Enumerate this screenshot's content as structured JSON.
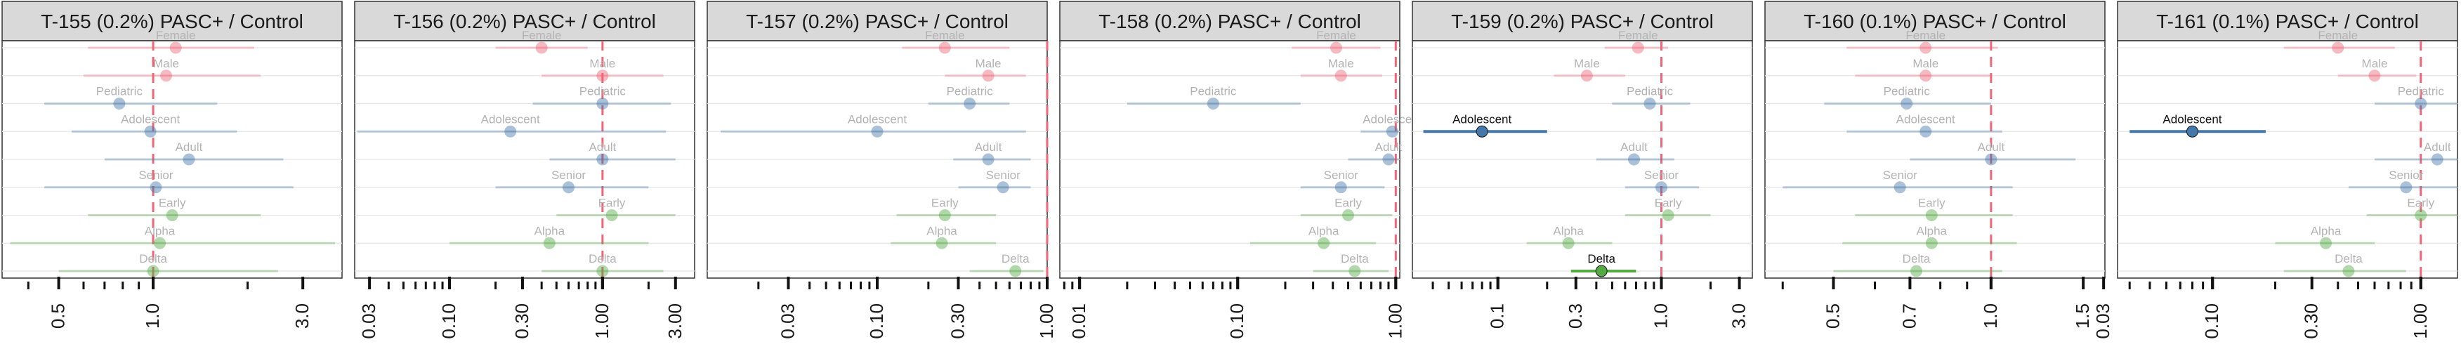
{
  "figure": {
    "reference_line_color": "#ee6677",
    "row_colors": {
      "Female": "#ee6677",
      "Male": "#ee6677",
      "Pediatric": "#4477aa",
      "Adolescent": "#4477aa",
      "Adult": "#4477aa",
      "Senior": "#4477aa",
      "Early": "#55aa44",
      "Alpha": "#55aa44",
      "Delta": "#55aa44"
    }
  },
  "chart_data": [
    {
      "type": "forest",
      "title": "T-155 (0.2%) PASC+ / Control",
      "xscale": "log",
      "xlim": [
        0.33,
        4.0
      ],
      "ticks": [
        "0.5",
        "1.0",
        "3.0"
      ],
      "rows": [
        {
          "label": "Female",
          "estimate": 1.18,
          "low": 0.62,
          "high": 2.1,
          "significant": false
        },
        {
          "label": "Male",
          "estimate": 1.1,
          "low": 0.6,
          "high": 2.2,
          "significant": false
        },
        {
          "label": "Pediatric",
          "estimate": 0.78,
          "low": 0.45,
          "high": 1.6,
          "significant": false
        },
        {
          "label": "Adolescent",
          "estimate": 0.98,
          "low": 0.55,
          "high": 1.85,
          "significant": false
        },
        {
          "label": "Adult",
          "estimate": 1.3,
          "low": 0.7,
          "high": 2.6,
          "significant": false
        },
        {
          "label": "Senior",
          "estimate": 1.02,
          "low": 0.45,
          "high": 2.8,
          "significant": false
        },
        {
          "label": "Early",
          "estimate": 1.15,
          "low": 0.62,
          "high": 2.2,
          "significant": false
        },
        {
          "label": "Alpha",
          "estimate": 1.05,
          "low": 0.35,
          "high": 3.8,
          "significant": false
        },
        {
          "label": "Delta",
          "estimate": 1.0,
          "low": 0.5,
          "high": 2.5,
          "significant": false
        }
      ]
    },
    {
      "type": "forest",
      "title": "T-156 (0.2%) PASC+ / Control",
      "xscale": "log",
      "xlim": [
        0.024,
        4.0
      ],
      "ticks": [
        "0.03",
        "0.10",
        "0.30",
        "1.00",
        "3.00"
      ],
      "rows": [
        {
          "label": "Female",
          "estimate": 0.4,
          "low": 0.2,
          "high": 0.8,
          "significant": false
        },
        {
          "label": "Male",
          "estimate": 1.0,
          "low": 0.4,
          "high": 2.5,
          "significant": false
        },
        {
          "label": "Pediatric",
          "estimate": 1.0,
          "low": 0.35,
          "high": 2.8,
          "significant": false
        },
        {
          "label": "Adolescent",
          "estimate": 0.25,
          "low": 0.025,
          "high": 2.6,
          "significant": false
        },
        {
          "label": "Adult",
          "estimate": 1.0,
          "low": 0.45,
          "high": 3.0,
          "significant": false
        },
        {
          "label": "Senior",
          "estimate": 0.6,
          "low": 0.2,
          "high": 2.0,
          "significant": false
        },
        {
          "label": "Early",
          "estimate": 1.15,
          "low": 0.5,
          "high": 3.0,
          "significant": false
        },
        {
          "label": "Alpha",
          "estimate": 0.45,
          "low": 0.1,
          "high": 2.0,
          "significant": false
        },
        {
          "label": "Delta",
          "estimate": 1.0,
          "low": 0.4,
          "high": 2.5,
          "significant": false
        }
      ]
    },
    {
      "type": "forest",
      "title": "T-157 (0.2%) PASC+ / Control",
      "xscale": "log",
      "xlim": [
        0.01,
        1.0
      ],
      "ticks": [
        "0.03",
        "0.10",
        "0.30",
        "1.00"
      ],
      "rows": [
        {
          "label": "Female",
          "estimate": 0.25,
          "low": 0.14,
          "high": 0.6,
          "significant": false
        },
        {
          "label": "Male",
          "estimate": 0.45,
          "low": 0.25,
          "high": 0.75,
          "significant": false
        },
        {
          "label": "Pediatric",
          "estimate": 0.35,
          "low": 0.2,
          "high": 0.6,
          "significant": false
        },
        {
          "label": "Adolescent",
          "estimate": 0.1,
          "low": 0.012,
          "high": 0.75,
          "significant": false
        },
        {
          "label": "Adult",
          "estimate": 0.45,
          "low": 0.28,
          "high": 0.8,
          "significant": false
        },
        {
          "label": "Senior",
          "estimate": 0.55,
          "low": 0.3,
          "high": 0.8,
          "significant": false
        },
        {
          "label": "Early",
          "estimate": 0.25,
          "low": 0.13,
          "high": 0.5,
          "significant": false
        },
        {
          "label": "Alpha",
          "estimate": 0.24,
          "low": 0.12,
          "high": 0.5,
          "significant": false
        },
        {
          "label": "Delta",
          "estimate": 0.65,
          "low": 0.35,
          "high": 0.95,
          "significant": false
        }
      ]
    },
    {
      "type": "forest",
      "title": "T-158 (0.2%) PASC+ / Control",
      "xscale": "log",
      "xlim": [
        0.0075,
        1.06
      ],
      "ticks": [
        "0.01",
        "0.10",
        "1.00"
      ],
      "rows": [
        {
          "label": "Female",
          "estimate": 0.42,
          "low": 0.22,
          "high": 0.8,
          "significant": false
        },
        {
          "label": "Male",
          "estimate": 0.45,
          "low": 0.25,
          "high": 0.82,
          "significant": false
        },
        {
          "label": "Pediatric",
          "estimate": 0.07,
          "low": 0.02,
          "high": 0.25,
          "significant": false
        },
        {
          "label": "Adolescent",
          "estimate": 0.95,
          "low": 0.6,
          "high": 1.05,
          "significant": false
        },
        {
          "label": "Adult",
          "estimate": 0.9,
          "low": 0.5,
          "high": 1.05,
          "significant": false
        },
        {
          "label": "Senior",
          "estimate": 0.45,
          "low": 0.25,
          "high": 0.85,
          "significant": false
        },
        {
          "label": "Early",
          "estimate": 0.5,
          "low": 0.25,
          "high": 0.95,
          "significant": false
        },
        {
          "label": "Alpha",
          "estimate": 0.35,
          "low": 0.12,
          "high": 0.75,
          "significant": false
        },
        {
          "label": "Delta",
          "estimate": 0.55,
          "low": 0.3,
          "high": 0.9,
          "significant": false
        }
      ]
    },
    {
      "type": "forest",
      "title": "T-159 (0.2%) PASC+ / Control",
      "xscale": "log",
      "xlim": [
        0.03,
        3.6
      ],
      "ticks": [
        "0.1",
        "0.3",
        "1.0",
        "3.0"
      ],
      "rows": [
        {
          "label": "Female",
          "estimate": 0.72,
          "low": 0.45,
          "high": 1.1,
          "significant": false
        },
        {
          "label": "Male",
          "estimate": 0.35,
          "low": 0.22,
          "high": 0.6,
          "significant": false
        },
        {
          "label": "Pediatric",
          "estimate": 0.85,
          "low": 0.5,
          "high": 1.5,
          "significant": false
        },
        {
          "label": "Adolescent",
          "estimate": 0.08,
          "low": 0.035,
          "high": 0.2,
          "significant": true
        },
        {
          "label": "Adult",
          "estimate": 0.68,
          "low": 0.4,
          "high": 1.2,
          "significant": false
        },
        {
          "label": "Senior",
          "estimate": 1.0,
          "low": 0.6,
          "high": 1.7,
          "significant": false
        },
        {
          "label": "Early",
          "estimate": 1.1,
          "low": 0.6,
          "high": 2.0,
          "significant": false
        },
        {
          "label": "Alpha",
          "estimate": 0.27,
          "low": 0.15,
          "high": 0.5,
          "significant": false
        },
        {
          "label": "Delta",
          "estimate": 0.43,
          "low": 0.28,
          "high": 0.7,
          "significant": true
        }
      ]
    },
    {
      "type": "forest",
      "title": "T-160 (0.1%) PASC+ / Control",
      "xscale": "log",
      "xlim": [
        0.37,
        1.65
      ],
      "ticks": [
        "0.5",
        "0.7",
        "1.0",
        "1.5"
      ],
      "rows": [
        {
          "label": "Female",
          "estimate": 0.75,
          "low": 0.53,
          "high": 1.03,
          "significant": false
        },
        {
          "label": "Male",
          "estimate": 0.75,
          "low": 0.55,
          "high": 1.0,
          "significant": false
        },
        {
          "label": "Pediatric",
          "estimate": 0.69,
          "low": 0.48,
          "high": 1.0,
          "significant": false
        },
        {
          "label": "Adolescent",
          "estimate": 0.75,
          "low": 0.53,
          "high": 1.05,
          "significant": false
        },
        {
          "label": "Adult",
          "estimate": 1.0,
          "low": 0.7,
          "high": 1.45,
          "significant": false
        },
        {
          "label": "Senior",
          "estimate": 0.67,
          "low": 0.4,
          "high": 1.1,
          "significant": false
        },
        {
          "label": "Early",
          "estimate": 0.77,
          "low": 0.55,
          "high": 1.1,
          "significant": false
        },
        {
          "label": "Alpha",
          "estimate": 0.77,
          "low": 0.52,
          "high": 1.12,
          "significant": false
        },
        {
          "label": "Delta",
          "estimate": 0.72,
          "low": 0.5,
          "high": 1.05,
          "significant": false
        }
      ]
    },
    {
      "type": "forest",
      "title": "T-161 (0.1%) PASC+ / Control",
      "xscale": "log",
      "xlim": [
        0.035,
        1.5
      ],
      "ticks": [
        "0.03",
        "0.10",
        "0.30",
        "1.00"
      ],
      "rows": [
        {
          "label": "Female",
          "estimate": 0.4,
          "low": 0.22,
          "high": 0.75,
          "significant": false
        },
        {
          "label": "Male",
          "estimate": 0.6,
          "low": 0.4,
          "high": 0.95,
          "significant": false
        },
        {
          "label": "Pediatric",
          "estimate": 1.0,
          "low": 0.6,
          "high": 1.5,
          "significant": false
        },
        {
          "label": "Adolescent",
          "estimate": 0.08,
          "low": 0.04,
          "high": 0.18,
          "significant": true
        },
        {
          "label": "Adult",
          "estimate": 1.2,
          "low": 0.6,
          "high": 1.5,
          "significant": false
        },
        {
          "label": "Senior",
          "estimate": 0.85,
          "low": 0.45,
          "high": 1.5,
          "significant": false
        },
        {
          "label": "Early",
          "estimate": 1.0,
          "low": 0.55,
          "high": 1.5,
          "significant": false
        },
        {
          "label": "Alpha",
          "estimate": 0.35,
          "low": 0.2,
          "high": 0.6,
          "significant": false
        },
        {
          "label": "Delta",
          "estimate": 0.45,
          "low": 0.22,
          "high": 0.85,
          "significant": false
        }
      ]
    }
  ]
}
